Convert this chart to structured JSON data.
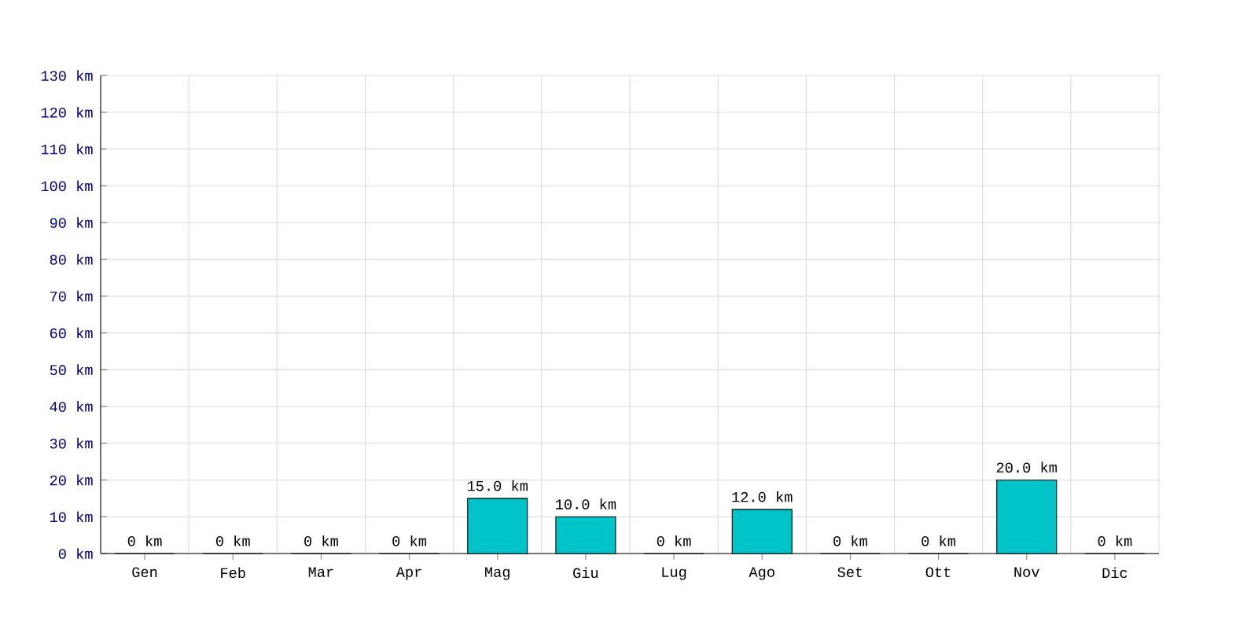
{
  "chart_data": {
    "type": "bar",
    "categories": [
      "Gen",
      "Feb",
      "Mar",
      "Apr",
      "Mag",
      "Giu",
      "Lug",
      "Ago",
      "Set",
      "Ott",
      "Nov",
      "Dic"
    ],
    "values": [
      0,
      0,
      0,
      0,
      15,
      10,
      0,
      12,
      0,
      0,
      20,
      0
    ],
    "value_labels": [
      "0 km",
      "0 km",
      "0 km",
      "0 km",
      "15.0 km",
      "10.0 km",
      "0 km",
      "12.0 km",
      "0 km",
      "0 km",
      "20.0 km",
      "0 km"
    ],
    "color": "#00c4c8",
    "ylim": [
      0,
      130
    ],
    "yticks": [
      {
        "value": 0,
        "label": "0 km"
      },
      {
        "value": 10,
        "label": "10 km"
      },
      {
        "value": 20,
        "label": "20 km"
      },
      {
        "value": 30,
        "label": "30 km"
      },
      {
        "value": 40,
        "label": "40 km"
      },
      {
        "value": 50,
        "label": "50 km"
      },
      {
        "value": 60,
        "label": "60 km"
      },
      {
        "value": 70,
        "label": "70 km"
      },
      {
        "value": 80,
        "label": "80 km"
      },
      {
        "value": 90,
        "label": "90 km"
      },
      {
        "value": 100,
        "label": "100 km"
      },
      {
        "value": 110,
        "label": "110 km"
      },
      {
        "value": 120,
        "label": "120 km"
      },
      {
        "value": 130,
        "label": "130 km"
      }
    ],
    "grid": true
  }
}
